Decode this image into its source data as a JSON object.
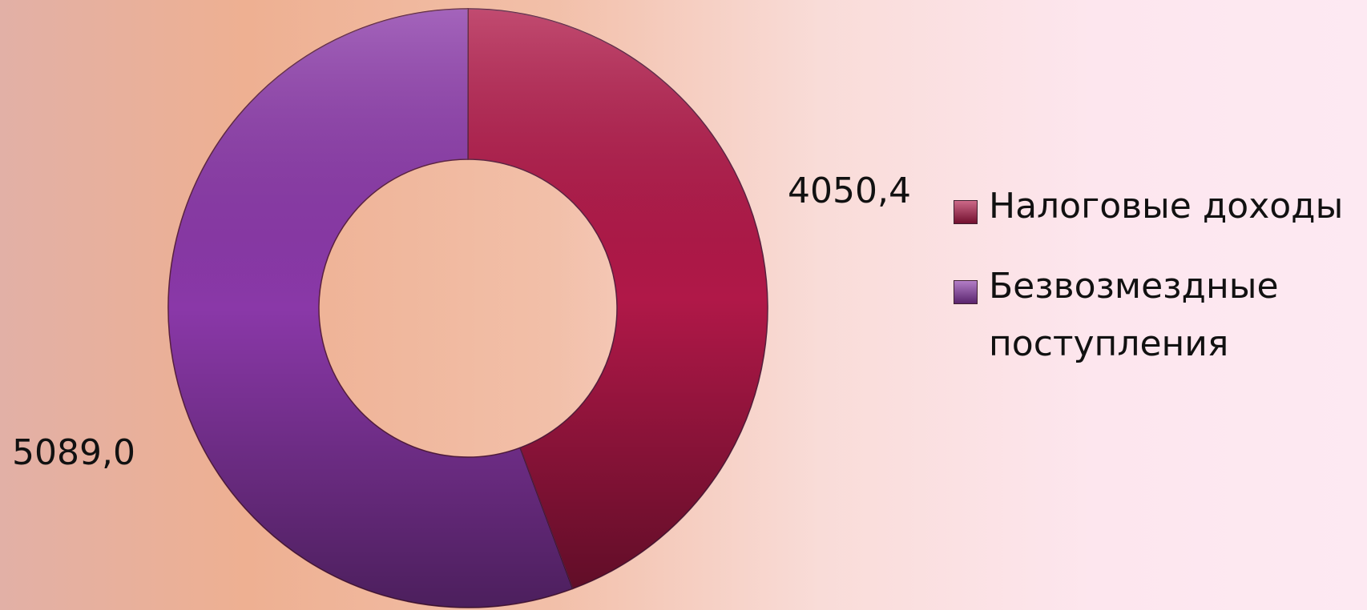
{
  "chart_data": {
    "type": "donut",
    "categories": [
      "Налоговые доходы",
      "Безвозмездные поступления"
    ],
    "values": [
      4050.4,
      5089.0
    ],
    "value_labels": [
      "4050,4",
      "5089,0"
    ],
    "colors": [
      "#b01848",
      "#8a38a8"
    ]
  }
}
